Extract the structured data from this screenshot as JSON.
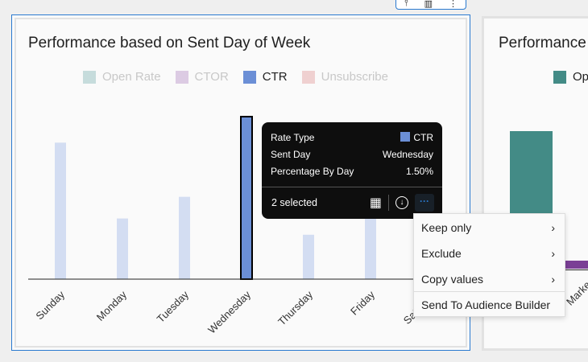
{
  "panel1": {
    "title": "Performance based on Sent Day of Week",
    "legend": [
      {
        "label": "Open Rate",
        "color": "#c6dcdc",
        "active": false
      },
      {
        "label": "CTOR",
        "color": "#dccbe3",
        "active": false
      },
      {
        "label": "CTR",
        "color": "#6b8fd6",
        "active": true
      },
      {
        "label": "Unsubscribe",
        "color": "#efd0d0",
        "active": false
      }
    ]
  },
  "chart_data": {
    "type": "bar",
    "categories": [
      "Sunday",
      "Monday",
      "Tuesday",
      "Wednesday",
      "Thursday",
      "Friday",
      "Saturday"
    ],
    "series": [
      {
        "name": "CTR",
        "values": [
          1.26,
          0.56,
          0.76,
          1.5,
          0.41,
          0.7,
          0.5
        ]
      }
    ],
    "selected": "Wednesday",
    "unit": "%",
    "colors": {
      "selected": "#6b8fd6",
      "unselected": "#d3ddf2"
    }
  },
  "tooltip": {
    "rows": [
      {
        "label": "Rate Type",
        "value": "CTR",
        "swatch": "#6b8fd6"
      },
      {
        "label": "Sent Day",
        "value": "Wednesday"
      },
      {
        "label": "Percentage By Day",
        "value": "1.50%"
      }
    ],
    "selected_count": "2 selected",
    "icons": [
      "table-icon",
      "download-icon",
      "more-icon"
    ]
  },
  "context_menu": [
    {
      "label": "Keep only",
      "submenu": true
    },
    {
      "label": "Exclude",
      "submenu": true
    },
    {
      "label": "Copy values",
      "submenu": true
    },
    {
      "label": "Send To Audience Builder",
      "submenu": false
    }
  ],
  "panel2": {
    "title": "Performance",
    "legend_label": "Op",
    "legend_color": "#438b86",
    "x_label": "Marke",
    "bar_colors": [
      "#438b86",
      "#7a3f95"
    ]
  }
}
